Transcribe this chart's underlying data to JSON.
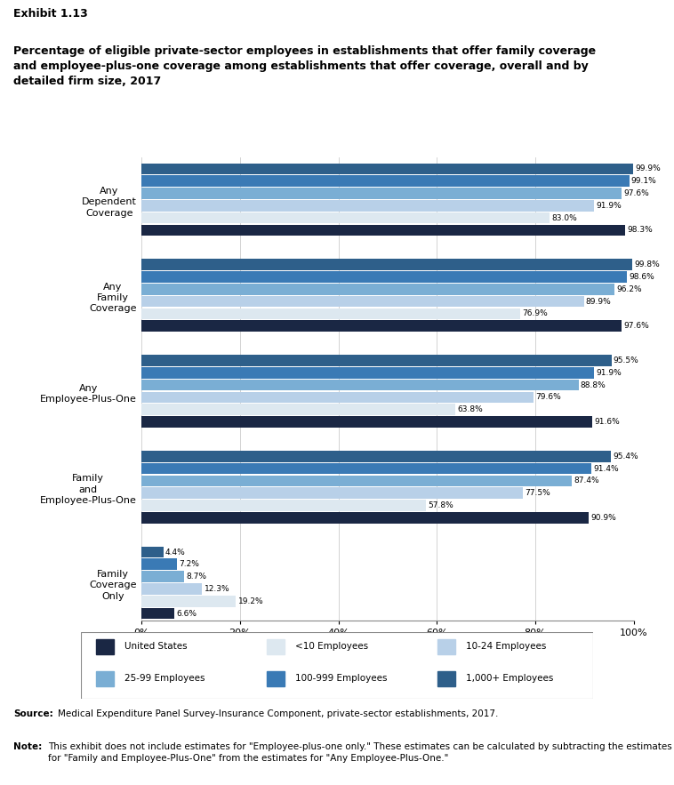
{
  "exhibit_label": "Exhibit 1.13",
  "title": "Percentage of eligible private-sector employees in establishments that offer family coverage\nand employee-plus-one coverage among establishments that offer coverage, overall and by\ndetailed firm size, 2017",
  "groups": [
    {
      "label": "Any\nDependent\nCoverage",
      "values": [
        99.9,
        99.1,
        97.6,
        91.9,
        83.0,
        98.3
      ]
    },
    {
      "label": "Any\nFamily\nCoverage",
      "values": [
        99.8,
        98.6,
        96.2,
        89.9,
        76.9,
        97.6
      ]
    },
    {
      "label": "Any\nEmployee-Plus-One",
      "values": [
        95.5,
        91.9,
        88.8,
        79.6,
        63.8,
        91.6
      ]
    },
    {
      "label": "Family\nand\nEmployee-Plus-One",
      "values": [
        95.4,
        91.4,
        87.4,
        77.5,
        57.8,
        90.9
      ]
    },
    {
      "label": "Family\nCoverage\nOnly",
      "values": [
        4.4,
        7.2,
        8.7,
        12.3,
        19.2,
        6.6
      ]
    }
  ],
  "series_colors": [
    "#2e5f8a",
    "#3a7ab5",
    "#7aaed4",
    "#b8d0e8",
    "#dde8f0",
    "#1a2744"
  ],
  "series_labels": [
    "1,000+ Employees",
    "100-999 Employees",
    "25-99 Employees",
    "10-24 Employees",
    "<10 Employees",
    "United States"
  ],
  "legend_order": [
    "United States",
    "<10 Employees",
    "10-24 Employees",
    "25-99 Employees",
    "100-999 Employees",
    "1,000+ Employees"
  ],
  "legend_colors": [
    "#1a2744",
    "#dde8f0",
    "#b8d0e8",
    "#7aaed4",
    "#3a7ab5",
    "#2e5f8a"
  ],
  "xtick_labels": [
    "0%",
    "20%",
    "40%",
    "60%",
    "80%",
    "100%"
  ],
  "xtick_values": [
    0,
    20,
    40,
    60,
    80,
    100
  ],
  "source_text": "Source: Medical Expenditure Panel Survey-Insurance Component, private-sector establishments, 2017.",
  "note_text": "Note: This exhibit does not include estimates for \"Employee-plus-one only.\" These estimates can be calculated by subtracting the estimates for \"Family and Employee-Plus-One\" from the estimates for \"Any Employee-Plus-One.\""
}
